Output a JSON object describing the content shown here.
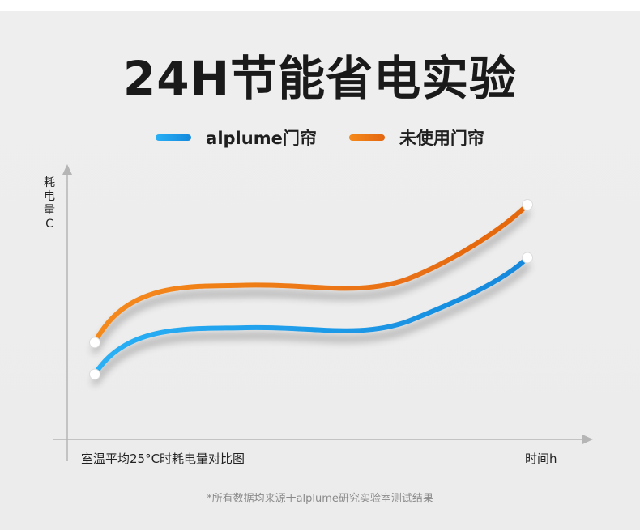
{
  "title": "24H节能省电实验",
  "legend": [
    {
      "label": "alplume门帘",
      "color": "#1e9be8"
    },
    {
      "label": "未使用门帘",
      "color": "#ee7418"
    }
  ],
  "chart_data": {
    "type": "line",
    "title": "24H节能省电实验",
    "ylabel": "耗电量C",
    "xlabel": "时间h",
    "caption": "室温平均25°C时耗电量对比图",
    "grid": true,
    "x": [
      0,
      0.5,
      1
    ],
    "series": [
      {
        "name": "alplume门帘",
        "color": "#1e9be8",
        "values": [
          0.2,
          0.42,
          0.75
        ]
      },
      {
        "name": "未使用门帘",
        "color": "#ee7418",
        "values": [
          0.35,
          0.62,
          1.0
        ]
      }
    ]
  },
  "footnote": "*所有数据均来源于alplume研究实验室测试结果"
}
